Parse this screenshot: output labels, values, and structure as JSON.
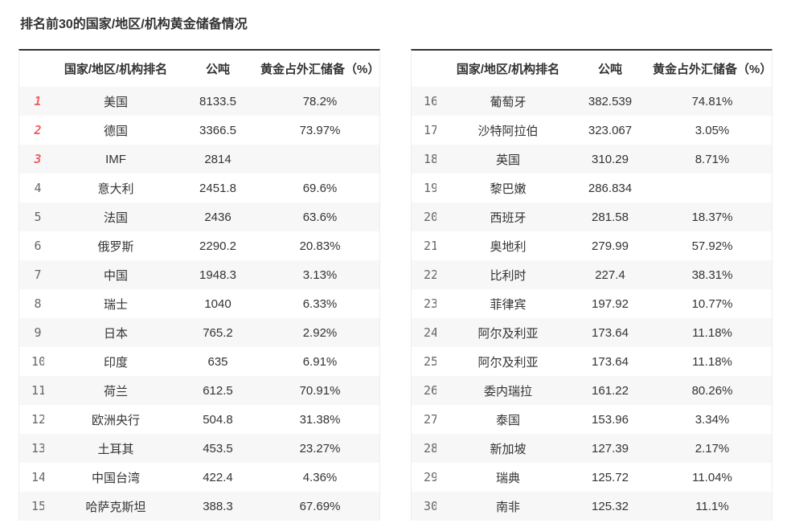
{
  "page": {
    "title": "排名前30的国家/地区/机构黄金储备情况"
  },
  "table_headers": {
    "rank": "",
    "name": "国家/地区/机构排名",
    "tons": "公吨",
    "percent": "黄金占外汇储备（%）"
  },
  "colors": {
    "rank_top3_red": "#f25d63",
    "rank_default_gray": "#666666",
    "alt_row_bg": "#f7f7f7",
    "table_top_border": "#323232",
    "text": "#333333"
  },
  "chart_data": {
    "type": "table",
    "title": "排名前30的国家/地区/机构黄金储备情况",
    "columns": [
      "排名",
      "国家/地区/机构",
      "公吨",
      "黄金占外汇储备（%）"
    ],
    "layout": "two side-by-side tables: ranks 1-15 left, ranks 16-30 right; ranks 1-3 highlighted red; odd rows shaded",
    "rows": [
      [
        1,
        "美国",
        "8133.5",
        "78.2%"
      ],
      [
        2,
        "德国",
        "3366.5",
        "73.97%"
      ],
      [
        3,
        "IMF",
        "2814",
        ""
      ],
      [
        4,
        "意大利",
        "2451.8",
        "69.6%"
      ],
      [
        5,
        "法国",
        "2436",
        "63.6%"
      ],
      [
        6,
        "俄罗斯",
        "2290.2",
        "20.83%"
      ],
      [
        7,
        "中国",
        "1948.3",
        "3.13%"
      ],
      [
        8,
        "瑞士",
        "1040",
        "6.33%"
      ],
      [
        9,
        "日本",
        "765.2",
        "2.92%"
      ],
      [
        10,
        "印度",
        "635",
        "6.91%"
      ],
      [
        11,
        "荷兰",
        "612.5",
        "70.91%"
      ],
      [
        12,
        "欧洲央行",
        "504.8",
        "31.38%"
      ],
      [
        13,
        "土耳其",
        "453.5",
        "23.27%"
      ],
      [
        14,
        "中国台湾",
        "422.4",
        "4.36%"
      ],
      [
        15,
        "哈萨克斯坦",
        "388.3",
        "67.69%"
      ],
      [
        16,
        "葡萄牙",
        "382.539",
        "74.81%"
      ],
      [
        17,
        "沙特阿拉伯",
        "323.067",
        "3.05%"
      ],
      [
        18,
        "英国",
        "310.29",
        "8.71%"
      ],
      [
        19,
        "黎巴嫩",
        "286.834",
        ""
      ],
      [
        20,
        "西班牙",
        "281.58",
        "18.37%"
      ],
      [
        21,
        "奥地利",
        "279.99",
        "57.92%"
      ],
      [
        22,
        "比利时",
        "227.4",
        "38.31%"
      ],
      [
        23,
        "菲律宾",
        "197.92",
        "10.77%"
      ],
      [
        24,
        "阿尔及利亚",
        "173.64",
        "11.18%"
      ],
      [
        25,
        "阿尔及利亚",
        "173.64",
        "11.18%"
      ],
      [
        26,
        "委内瑞拉",
        "161.22",
        "80.26%"
      ],
      [
        27,
        "泰国",
        "153.96",
        "3.34%"
      ],
      [
        28,
        "新加坡",
        "127.39",
        "2.17%"
      ],
      [
        29,
        "瑞典",
        "125.72",
        "11.04%"
      ],
      [
        30,
        "南非",
        "125.32",
        "11.1%"
      ]
    ]
  }
}
